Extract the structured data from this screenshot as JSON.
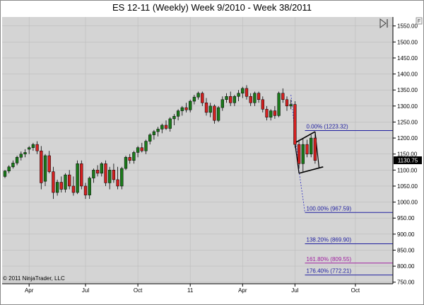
{
  "chart_data": {
    "type": "candlestick",
    "title": "ES 12-11 (Weekly)  Week 9/2010 - Week 38/2011",
    "copyright": "© 2011 NinjaTrader, LLC",
    "ylim": [
      745,
      1578
    ],
    "y_ticks": [
      750,
      800,
      850,
      900,
      950,
      1000,
      1050,
      1100,
      1150,
      1200,
      1250,
      1300,
      1350,
      1400,
      1450,
      1500,
      1550
    ],
    "y_tick_labels": [
      "750.00",
      "800.00",
      "850.00",
      "900.00",
      "950.00",
      "1000.00",
      "1050.00",
      "1100.00",
      "1150.00",
      "1200.00",
      "1250.00",
      "1300.00",
      "1350.00",
      "1400.00",
      "1450.00",
      "1500.00",
      "1550.00"
    ],
    "x_ticks": [
      "Apr",
      "Jul",
      "Oct",
      "11",
      "Apr",
      "Jul",
      "Oct"
    ],
    "x_tick_index": [
      6,
      20,
      33,
      46,
      59,
      72,
      87
    ],
    "last_price": "1130.75",
    "last_price_value": 1130.75,
    "colors": {
      "up": "#1a7a1a",
      "down": "#d42020",
      "fib": "#2020a0",
      "fib161": "#a020a0",
      "trend": "#3030c0"
    },
    "ohlc": [
      [
        1080,
        1100,
        1075,
        1097
      ],
      [
        1097,
        1115,
        1090,
        1110
      ],
      [
        1110,
        1130,
        1105,
        1122
      ],
      [
        1122,
        1145,
        1115,
        1140
      ],
      [
        1140,
        1158,
        1130,
        1150
      ],
      [
        1150,
        1165,
        1140,
        1155
      ],
      [
        1165,
        1175,
        1150,
        1170
      ],
      [
        1170,
        1185,
        1160,
        1180
      ],
      [
        1180,
        1190,
        1150,
        1160
      ],
      [
        1160,
        1175,
        1040,
        1060
      ],
      [
        1065,
        1150,
        1050,
        1145
      ],
      [
        1145,
        1160,
        1090,
        1095
      ],
      [
        1095,
        1110,
        1010,
        1030
      ],
      [
        1030,
        1070,
        1020,
        1062
      ],
      [
        1062,
        1080,
        1030,
        1040
      ],
      [
        1040,
        1090,
        1030,
        1085
      ],
      [
        1085,
        1100,
        1040,
        1050
      ],
      [
        1050,
        1080,
        1020,
        1030
      ],
      [
        1030,
        1130,
        1025,
        1120
      ],
      [
        1120,
        1130,
        1040,
        1050
      ],
      [
        1050,
        1060,
        1010,
        1022
      ],
      [
        1022,
        1080,
        1010,
        1075
      ],
      [
        1075,
        1105,
        1060,
        1100
      ],
      [
        1100,
        1115,
        1080,
        1090
      ],
      [
        1090,
        1125,
        1080,
        1120
      ],
      [
        1120,
        1130,
        1050,
        1060
      ],
      [
        1060,
        1110,
        1040,
        1100
      ],
      [
        1100,
        1120,
        1060,
        1070
      ],
      [
        1070,
        1110,
        1040,
        1050
      ],
      [
        1050,
        1110,
        1040,
        1105
      ],
      [
        1105,
        1145,
        1100,
        1140
      ],
      [
        1140,
        1150,
        1120,
        1130
      ],
      [
        1130,
        1160,
        1120,
        1155
      ],
      [
        1155,
        1175,
        1140,
        1170
      ],
      [
        1170,
        1185,
        1155,
        1160
      ],
      [
        1160,
        1195,
        1150,
        1190
      ],
      [
        1190,
        1215,
        1180,
        1210
      ],
      [
        1210,
        1225,
        1195,
        1220
      ],
      [
        1220,
        1235,
        1205,
        1228
      ],
      [
        1228,
        1245,
        1215,
        1240
      ],
      [
        1240,
        1255,
        1225,
        1230
      ],
      [
        1230,
        1265,
        1220,
        1260
      ],
      [
        1260,
        1275,
        1240,
        1268
      ],
      [
        1268,
        1290,
        1255,
        1285
      ],
      [
        1285,
        1300,
        1270,
        1295
      ],
      [
        1295,
        1310,
        1280,
        1288
      ],
      [
        1288,
        1320,
        1280,
        1315
      ],
      [
        1315,
        1335,
        1305,
        1328
      ],
      [
        1328,
        1345,
        1320,
        1340
      ],
      [
        1340,
        1345,
        1300,
        1310
      ],
      [
        1310,
        1325,
        1270,
        1280
      ],
      [
        1280,
        1310,
        1265,
        1300
      ],
      [
        1300,
        1305,
        1245,
        1255
      ],
      [
        1255,
        1300,
        1250,
        1295
      ],
      [
        1295,
        1330,
        1285,
        1320
      ],
      [
        1320,
        1340,
        1310,
        1330
      ],
      [
        1330,
        1345,
        1300,
        1310
      ],
      [
        1310,
        1335,
        1300,
        1330
      ],
      [
        1330,
        1350,
        1315,
        1340
      ],
      [
        1340,
        1360,
        1325,
        1355
      ],
      [
        1355,
        1365,
        1320,
        1330
      ],
      [
        1330,
        1340,
        1300,
        1310
      ],
      [
        1310,
        1345,
        1300,
        1340
      ],
      [
        1340,
        1345,
        1310,
        1320
      ],
      [
        1320,
        1330,
        1280,
        1290
      ],
      [
        1290,
        1300,
        1255,
        1265
      ],
      [
        1265,
        1290,
        1255,
        1285
      ],
      [
        1285,
        1300,
        1260,
        1270
      ],
      [
        1270,
        1345,
        1265,
        1340
      ],
      [
        1340,
        1355,
        1310,
        1320
      ],
      [
        1320,
        1330,
        1285,
        1300
      ],
      [
        1300,
        1320,
        1290,
        1305
      ],
      [
        1305,
        1315,
        1170,
        1180
      ],
      [
        1180,
        1195,
        1105,
        1120
      ],
      [
        1120,
        1200,
        1095,
        1180
      ],
      [
        1180,
        1195,
        1140,
        1150
      ],
      [
        1150,
        1210,
        1140,
        1200
      ],
      [
        1200,
        1220,
        1120,
        1130
      ]
    ],
    "fib_levels": [
      {
        "label": "0.00% (1223.32)",
        "value": 1223.32
      },
      {
        "label": "100.00% (967.59)",
        "value": 967.59
      },
      {
        "label": "138.20% (869.90)",
        "value": 869.9
      },
      {
        "label": "161.80% (809.55)",
        "value": 809.55
      },
      {
        "label": "176.40% (772.21)",
        "value": 772.21
      }
    ]
  }
}
